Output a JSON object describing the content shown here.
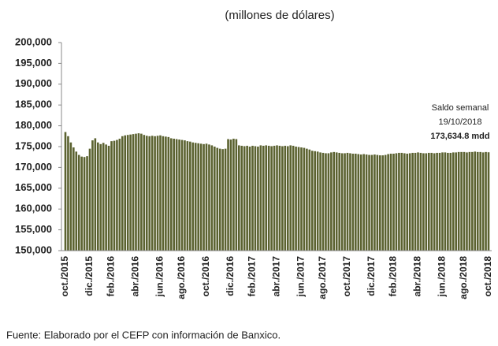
{
  "chart_data": {
    "type": "bar",
    "title": "(millones de dólares)",
    "source": "Fuente: Elaborado por el CEFP con información de Banxico.",
    "annotation": [
      "Saldo semanal",
      "19/10/2018",
      "173,634.8 mdd"
    ],
    "color": "#5b6230",
    "ylim": [
      150000,
      200000
    ],
    "yticks": [
      {
        "value": 150000,
        "label": "150,000"
      },
      {
        "value": 155000,
        "label": "155,000"
      },
      {
        "value": 160000,
        "label": "160,000"
      },
      {
        "value": 165000,
        "label": "165,000"
      },
      {
        "value": 170000,
        "label": "170,000"
      },
      {
        "value": 175000,
        "label": "175,000"
      },
      {
        "value": 180000,
        "label": "180,000"
      },
      {
        "value": 185000,
        "label": "185,000"
      },
      {
        "value": 190000,
        "label": "190,000"
      },
      {
        "value": 195000,
        "label": "195,000"
      },
      {
        "value": 200000,
        "label": "200,000"
      }
    ],
    "categories": [
      "oct./2015",
      null,
      null,
      null,
      null,
      null,
      null,
      null,
      null,
      "dic./2015",
      null,
      null,
      null,
      null,
      null,
      null,
      null,
      "feb./2016",
      null,
      null,
      null,
      null,
      null,
      null,
      null,
      null,
      "abr./2016",
      null,
      null,
      null,
      null,
      null,
      null,
      null,
      null,
      "jun./2016",
      null,
      null,
      null,
      null,
      null,
      null,
      null,
      "ago./2016",
      null,
      null,
      null,
      null,
      null,
      null,
      null,
      null,
      "oct./2016",
      null,
      null,
      null,
      null,
      null,
      null,
      null,
      null,
      "dic./2016",
      null,
      null,
      null,
      null,
      null,
      null,
      null,
      "feb./2017",
      null,
      null,
      null,
      null,
      null,
      null,
      null,
      null,
      "abr./2017",
      null,
      null,
      null,
      null,
      null,
      null,
      null,
      null,
      "jun./2017",
      null,
      null,
      null,
      null,
      null,
      null,
      null,
      "ago./2017",
      null,
      null,
      null,
      null,
      null,
      null,
      null,
      null,
      "oct./2017",
      null,
      null,
      null,
      null,
      null,
      null,
      null,
      null,
      "dic./2017",
      null,
      null,
      null,
      null,
      null,
      null,
      null,
      "feb./2018",
      null,
      null,
      null,
      null,
      null,
      null,
      null,
      null,
      "abr./2018",
      null,
      null,
      null,
      null,
      null,
      null,
      null,
      null,
      "jun./2018",
      null,
      null,
      null,
      null,
      null,
      null,
      null,
      "ago./2018",
      null,
      null,
      null,
      null,
      null,
      null,
      null,
      null,
      "oct./2018"
    ],
    "values": [
      178500,
      177500,
      176000,
      174800,
      173800,
      173000,
      172600,
      172500,
      172700,
      174500,
      176500,
      177000,
      176000,
      175600,
      175900,
      175500,
      175200,
      176300,
      176400,
      176600,
      176900,
      177500,
      177700,
      177800,
      177900,
      178000,
      178100,
      178200,
      178100,
      177800,
      177600,
      177500,
      177600,
      177500,
      177600,
      177700,
      177500,
      177400,
      177300,
      177000,
      176900,
      176800,
      176700,
      176600,
      176500,
      176300,
      176200,
      176000,
      175900,
      175800,
      175700,
      175600,
      175700,
      175500,
      175300,
      175000,
      174700,
      174500,
      174400,
      174500,
      176800,
      176700,
      176900,
      176800,
      175300,
      175200,
      175100,
      175200,
      175000,
      175200,
      175100,
      175000,
      175300,
      175200,
      175300,
      175200,
      175100,
      175200,
      175300,
      175200,
      175100,
      175200,
      175100,
      175300,
      175200,
      175000,
      174900,
      174800,
      174700,
      174500,
      174300,
      174000,
      173900,
      173800,
      173600,
      173500,
      173400,
      173400,
      173600,
      173700,
      173600,
      173500,
      173400,
      173400,
      173500,
      173400,
      173300,
      173300,
      173200,
      173100,
      173200,
      173100,
      173000,
      173000,
      173100,
      173000,
      172900,
      172900,
      173000,
      173200,
      173300,
      173300,
      173400,
      173500,
      173500,
      173400,
      173300,
      173400,
      173500,
      173500,
      173600,
      173500,
      173400,
      173400,
      173500,
      173500,
      173400,
      173500,
      173500,
      173600,
      173600,
      173500,
      173500,
      173600,
      173600,
      173700,
      173700,
      173700,
      173600,
      173700,
      173700,
      173800,
      173700,
      173700,
      173600,
      173700,
      173634.8
    ]
  }
}
